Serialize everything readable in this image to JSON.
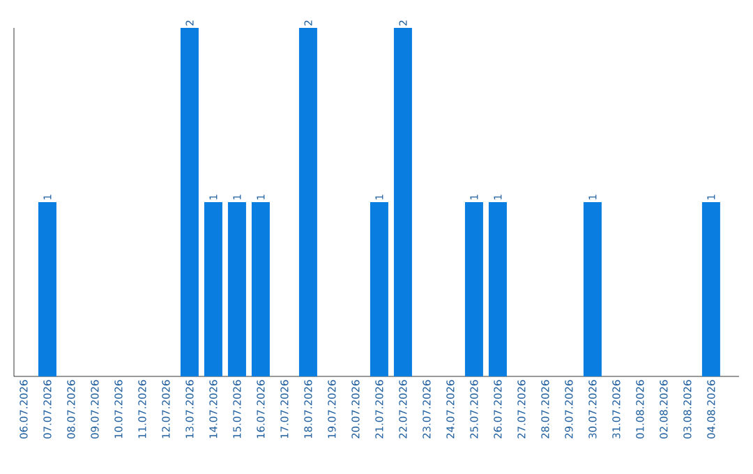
{
  "chart_data": {
    "type": "bar",
    "categories": [
      "06.07.2026",
      "07.07.2026",
      "08.07.2026",
      "09.07.2026",
      "10.07.2026",
      "11.07.2026",
      "12.07.2026",
      "13.07.2026",
      "14.07.2026",
      "15.07.2026",
      "16.07.2026",
      "17.07.2026",
      "18.07.2026",
      "19.07.2026",
      "20.07.2026",
      "21.07.2026",
      "22.07.2026",
      "23.07.2026",
      "24.07.2026",
      "25.07.2026",
      "26.07.2026",
      "27.07.2026",
      "28.07.2026",
      "29.07.2026",
      "30.07.2026",
      "31.07.2026",
      "01.08.2026",
      "02.08.2026",
      "03.08.2026",
      "04.08.2026"
    ],
    "values": [
      0,
      1,
      0,
      0,
      0,
      0,
      0,
      2,
      1,
      1,
      1,
      0,
      2,
      0,
      0,
      1,
      2,
      0,
      0,
      1,
      1,
      0,
      0,
      0,
      1,
      0,
      0,
      0,
      0,
      1
    ],
    "value_labels": [
      null,
      "1",
      null,
      null,
      null,
      null,
      null,
      "2",
      "1",
      "1",
      "1",
      null,
      "2",
      null,
      null,
      "1",
      "2",
      null,
      null,
      "1",
      "1",
      null,
      null,
      null,
      "1",
      null,
      null,
      null,
      null,
      "1"
    ],
    "color": "#0a7ee0",
    "ylim": [
      0,
      2
    ],
    "tick_labels": "x"
  }
}
